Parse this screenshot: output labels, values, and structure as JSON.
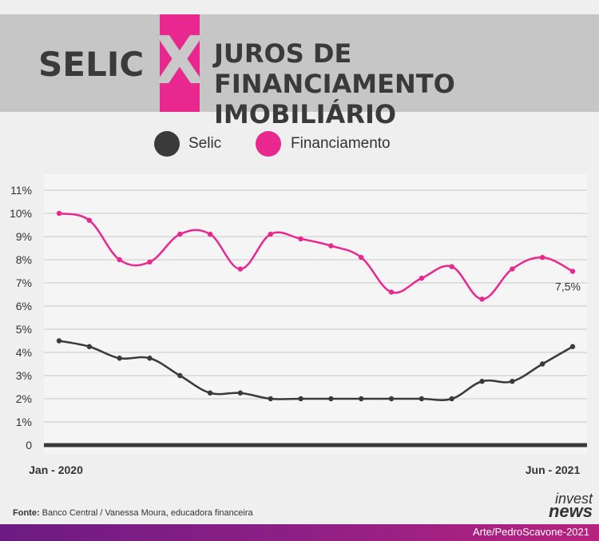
{
  "header": {
    "left_title": "SELIC",
    "x_letter": "X",
    "right_title_line1": "JUROS DE FINANCIAMENTO",
    "right_title_line2": "IMOBILIÁRIO"
  },
  "legend": {
    "selic_label": "Selic",
    "financiamento_label": "Financiamento"
  },
  "colors": {
    "selic": "#3a3a3a",
    "financiamento": "#e8278f",
    "banner": "#c6c6c6",
    "grid": "#c8c8c8"
  },
  "chart_data": {
    "type": "line",
    "x_start_label": "Jan - 2020",
    "x_end_label": "Jun - 2021",
    "ylim": [
      0,
      11
    ],
    "yticks": [
      "0",
      "1%",
      "2%",
      "3%",
      "4%",
      "5%",
      "6%",
      "7%",
      "8%",
      "9%",
      "10%",
      "11%"
    ],
    "grid": true,
    "legend_position": "top-left",
    "series": [
      {
        "name": "Selic",
        "values": [
          4.5,
          4.25,
          3.75,
          3.75,
          3.0,
          2.25,
          2.25,
          2.0,
          2.0,
          2.0,
          2.0,
          2.0,
          2.0,
          2.0,
          2.75,
          2.75,
          3.5,
          4.25
        ]
      },
      {
        "name": "Financiamento",
        "values": [
          10.0,
          9.7,
          8.0,
          7.9,
          9.1,
          9.1,
          7.6,
          9.1,
          8.9,
          8.6,
          8.1,
          6.6,
          7.2,
          7.7,
          6.3,
          7.6,
          8.1,
          7.5
        ]
      }
    ],
    "annotation": "7,5%"
  },
  "footer": {
    "source_label": "Fonte:",
    "source_text": " Banco Central / Vanessa Moura, educadora financeira",
    "brand_line1": "invest",
    "brand_line2": "news",
    "credit": "Arte/PedroScavone-2021"
  }
}
